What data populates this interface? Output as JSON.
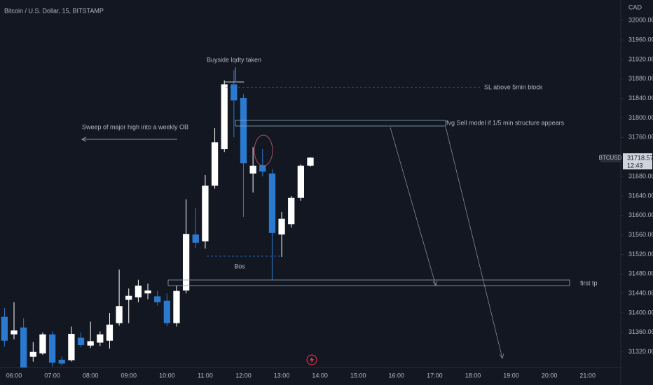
{
  "chart_data": {
    "type": "candlestick",
    "title": "Bitcoin / U.S. Dollar, 15, BITSTAMP",
    "currency": "CAD",
    "symbol": "BTCUSD",
    "countdown": "12:43",
    "up_color": "#ffffff",
    "down_color": "#2a7ad0",
    "x": [
      "05:45",
      "06:00",
      "06:15",
      "06:30",
      "06:45",
      "07:00",
      "07:15",
      "07:30",
      "07:45",
      "08:00",
      "08:15",
      "08:30",
      "08:45",
      "09:00",
      "09:15",
      "09:30",
      "09:45",
      "10:00",
      "10:15",
      "10:30",
      "10:45",
      "11:00",
      "11:15",
      "11:30",
      "11:45",
      "12:00",
      "12:15",
      "12:30",
      "12:45",
      "13:00",
      "13:15",
      "13:30",
      "13:45"
    ],
    "open": [
      31392,
      31356,
      31370,
      31310,
      31317,
      31356,
      31304,
      31303,
      31349,
      31333,
      31339,
      31343,
      31379,
      31427,
      31432,
      31440,
      31434,
      31425,
      31379,
      31446,
      31561,
      31547,
      31661,
      31736,
      31869,
      31841,
      31686,
      31703,
      31686,
      31561,
      31582,
      31636,
      31702
    ],
    "high": [
      31410,
      31422,
      31389,
      31340,
      31360,
      31362,
      31310,
      31372,
      31360,
      31382,
      31362,
      31400,
      31489,
      31450,
      31468,
      31460,
      31445,
      31440,
      31456,
      31633,
      31615,
      31683,
      31779,
      31877,
      31898,
      31849,
      31740,
      31736,
      31695,
      31607,
      31640,
      31705,
      31720
    ],
    "low": [
      31331,
      31346,
      31288,
      31300,
      31314,
      31290,
      31292,
      31300,
      31330,
      31328,
      31332,
      31327,
      31374,
      31379,
      31422,
      31428,
      31415,
      31373,
      31372,
      31440,
      31533,
      31532,
      31655,
      31730,
      31760,
      31597,
      31647,
      31680,
      31468,
      31515,
      31575,
      31630,
      31700
    ],
    "close": [
      31343,
      31364,
      31288,
      31320,
      31356,
      31298,
      31296,
      31357,
      31334,
      31342,
      31356,
      31376,
      31414,
      31435,
      31456,
      31446,
      31422,
      31379,
      31445,
      31562,
      31544,
      31661,
      31750,
      31869,
      31836,
      31707,
      31702,
      31690,
      31564,
      31593,
      31636,
      31702,
      31718.57
    ],
    "xlim": [
      "05:38",
      "21:52"
    ],
    "xticks": [
      "06:00",
      "07:00",
      "08:00",
      "09:00",
      "10:00",
      "11:00",
      "12:00",
      "13:00",
      "14:00",
      "15:00",
      "16:00",
      "17:00",
      "18:00",
      "19:00",
      "20:00",
      "21:00"
    ],
    "ylim": [
      31288,
      32042
    ],
    "yticks": [
      {
        "value": 31320,
        "label": "31320.00"
      },
      {
        "value": 31360,
        "label": "31360.00"
      },
      {
        "value": 31400,
        "label": "31400.00"
      },
      {
        "value": 31440,
        "label": "31440.00"
      },
      {
        "value": 31480,
        "label": "31480.00"
      },
      {
        "value": 31520,
        "label": "31520.00"
      },
      {
        "value": 31560,
        "label": "31560.00"
      },
      {
        "value": 31600,
        "label": "31600.00"
      },
      {
        "value": 31640,
        "label": "31640.00"
      },
      {
        "value": 31680,
        "label": "31680.00"
      },
      {
        "value": 31760,
        "label": "31760.00"
      },
      {
        "value": 31800,
        "label": "31800.00"
      },
      {
        "value": 31840,
        "label": "31840.00"
      },
      {
        "value": 31880,
        "label": "31880.00"
      },
      {
        "value": 31920,
        "label": "31920.00"
      },
      {
        "value": 31960,
        "label": "31960.00"
      },
      {
        "value": 32000,
        "label": "32000.00"
      }
    ],
    "grid": false,
    "annotations": [
      "Buyside lqdty taken",
      "SL above 5min block",
      "fvg  Sell model if 1/5 min structure appears",
      "Sweep of major high into a weekly OB",
      "Bos",
      "first tp"
    ]
  }
}
